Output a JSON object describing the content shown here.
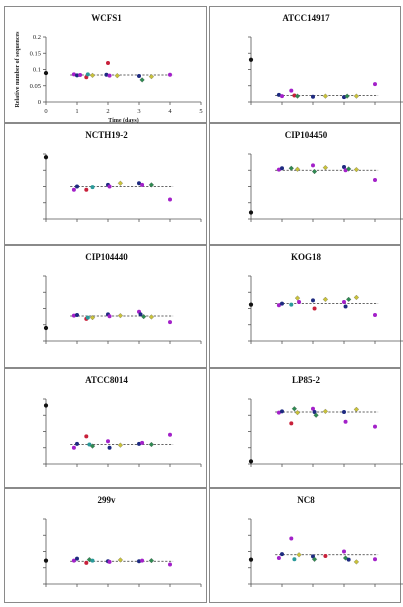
{
  "colors": {
    "black": "#111111",
    "purple": "#a321c9",
    "navy": "#1e2a80",
    "red": "#c8203a",
    "green": "#2f8a52",
    "yellow": "#c9c23a",
    "teal": "#2a9a9a",
    "dashed_line": "#333333"
  },
  "chart_data": [
    {
      "type": "scatter",
      "title": "WCFS1",
      "xlabel": "Time (days)",
      "ylabel": "Relative number of sequences",
      "xlim": [
        0,
        5
      ],
      "ylim": [
        0,
        0.2
      ],
      "x_ticks": [
        "0",
        "1",
        "2",
        "3",
        "4",
        "5"
      ],
      "y_ticks": [
        "0",
        "0.05",
        "0.1",
        "0.15",
        "0.2"
      ],
      "show_tick_labels": true,
      "baseline": 0.083,
      "points": [
        {
          "x": 0,
          "y": 0.089,
          "c": "black"
        },
        {
          "x": 0.9,
          "y": 0.085,
          "c": "purple"
        },
        {
          "x": 1.0,
          "y": 0.082,
          "c": "navy"
        },
        {
          "x": 1.1,
          "y": 0.083,
          "c": "purple"
        },
        {
          "x": 1.3,
          "y": 0.076,
          "c": "red"
        },
        {
          "x": 1.35,
          "y": 0.085,
          "c": "teal"
        },
        {
          "x": 1.5,
          "y": 0.082,
          "c": "yellow"
        },
        {
          "x": 1.95,
          "y": 0.084,
          "c": "navy"
        },
        {
          "x": 2.0,
          "y": 0.12,
          "c": "red"
        },
        {
          "x": 2.05,
          "y": 0.081,
          "c": "purple"
        },
        {
          "x": 2.3,
          "y": 0.081,
          "c": "yellow"
        },
        {
          "x": 3.0,
          "y": 0.08,
          "c": "navy"
        },
        {
          "x": 3.1,
          "y": 0.068,
          "c": "green"
        },
        {
          "x": 3.4,
          "y": 0.078,
          "c": "yellow"
        },
        {
          "x": 4.0,
          "y": 0.084,
          "c": "purple"
        }
      ]
    },
    {
      "type": "scatter",
      "title": "ATCC14917",
      "xlim": [
        0,
        5
      ],
      "ylim": [
        0,
        0.2
      ],
      "show_tick_labels": false,
      "baseline": 0.02,
      "points": [
        {
          "x": 0,
          "y": 0.13,
          "c": "black"
        },
        {
          "x": 0.9,
          "y": 0.022,
          "c": "navy"
        },
        {
          "x": 1.0,
          "y": 0.018,
          "c": "purple"
        },
        {
          "x": 1.3,
          "y": 0.035,
          "c": "purple"
        },
        {
          "x": 1.4,
          "y": 0.02,
          "c": "red"
        },
        {
          "x": 1.5,
          "y": 0.018,
          "c": "green"
        },
        {
          "x": 2.0,
          "y": 0.016,
          "c": "navy"
        },
        {
          "x": 2.4,
          "y": 0.018,
          "c": "yellow"
        },
        {
          "x": 3.0,
          "y": 0.015,
          "c": "navy"
        },
        {
          "x": 3.1,
          "y": 0.018,
          "c": "green"
        },
        {
          "x": 3.4,
          "y": 0.018,
          "c": "yellow"
        },
        {
          "x": 4.0,
          "y": 0.055,
          "c": "purple"
        }
      ]
    },
    {
      "type": "scatter",
      "title": "NCTH19-2",
      "xlim": [
        0,
        5
      ],
      "ylim": [
        0,
        0.2
      ],
      "show_tick_labels": false,
      "baseline": 0.1,
      "points": [
        {
          "x": 0,
          "y": 0.19,
          "c": "black"
        },
        {
          "x": 0.9,
          "y": 0.09,
          "c": "purple"
        },
        {
          "x": 1.0,
          "y": 0.1,
          "c": "navy"
        },
        {
          "x": 1.3,
          "y": 0.09,
          "c": "red"
        },
        {
          "x": 1.5,
          "y": 0.098,
          "c": "teal"
        },
        {
          "x": 2.0,
          "y": 0.105,
          "c": "navy"
        },
        {
          "x": 2.05,
          "y": 0.1,
          "c": "purple"
        },
        {
          "x": 2.4,
          "y": 0.11,
          "c": "yellow"
        },
        {
          "x": 3.0,
          "y": 0.11,
          "c": "navy"
        },
        {
          "x": 3.1,
          "y": 0.105,
          "c": "purple"
        },
        {
          "x": 3.4,
          "y": 0.105,
          "c": "green"
        },
        {
          "x": 4.0,
          "y": 0.06,
          "c": "purple"
        }
      ]
    },
    {
      "type": "scatter",
      "title": "CIP104450",
      "xlim": [
        0,
        5
      ],
      "ylim": [
        0,
        0.2
      ],
      "show_tick_labels": false,
      "baseline": 0.15,
      "points": [
        {
          "x": 0,
          "y": 0.02,
          "c": "black"
        },
        {
          "x": 0.9,
          "y": 0.152,
          "c": "purple"
        },
        {
          "x": 1.0,
          "y": 0.156,
          "c": "navy"
        },
        {
          "x": 1.3,
          "y": 0.156,
          "c": "green"
        },
        {
          "x": 1.5,
          "y": 0.153,
          "c": "yellow"
        },
        {
          "x": 2.0,
          "y": 0.165,
          "c": "purple"
        },
        {
          "x": 2.05,
          "y": 0.146,
          "c": "green"
        },
        {
          "x": 2.4,
          "y": 0.158,
          "c": "yellow"
        },
        {
          "x": 3.0,
          "y": 0.16,
          "c": "navy"
        },
        {
          "x": 3.05,
          "y": 0.15,
          "c": "purple"
        },
        {
          "x": 3.15,
          "y": 0.154,
          "c": "green"
        },
        {
          "x": 3.4,
          "y": 0.152,
          "c": "yellow"
        },
        {
          "x": 4.0,
          "y": 0.12,
          "c": "purple"
        }
      ]
    },
    {
      "type": "scatter",
      "title": "CIP104440",
      "xlim": [
        0,
        5
      ],
      "ylim": [
        0,
        0.2
      ],
      "show_tick_labels": false,
      "baseline": 0.077,
      "points": [
        {
          "x": 0,
          "y": 0.04,
          "c": "black"
        },
        {
          "x": 0.9,
          "y": 0.078,
          "c": "purple"
        },
        {
          "x": 1.0,
          "y": 0.08,
          "c": "navy"
        },
        {
          "x": 1.3,
          "y": 0.068,
          "c": "red"
        },
        {
          "x": 1.35,
          "y": 0.072,
          "c": "teal"
        },
        {
          "x": 1.5,
          "y": 0.072,
          "c": "yellow"
        },
        {
          "x": 2.0,
          "y": 0.082,
          "c": "navy"
        },
        {
          "x": 2.05,
          "y": 0.076,
          "c": "purple"
        },
        {
          "x": 2.4,
          "y": 0.078,
          "c": "yellow"
        },
        {
          "x": 3.0,
          "y": 0.09,
          "c": "purple"
        },
        {
          "x": 3.05,
          "y": 0.082,
          "c": "navy"
        },
        {
          "x": 3.15,
          "y": 0.075,
          "c": "green"
        },
        {
          "x": 3.4,
          "y": 0.074,
          "c": "yellow"
        },
        {
          "x": 4.0,
          "y": 0.058,
          "c": "purple"
        }
      ]
    },
    {
      "type": "scatter",
      "title": "KOG18",
      "xlim": [
        0,
        5
      ],
      "ylim": [
        0,
        0.2
      ],
      "show_tick_labels": false,
      "baseline": 0.115,
      "points": [
        {
          "x": 0,
          "y": 0.112,
          "c": "black"
        },
        {
          "x": 0.9,
          "y": 0.11,
          "c": "purple"
        },
        {
          "x": 1.0,
          "y": 0.115,
          "c": "navy"
        },
        {
          "x": 1.3,
          "y": 0.112,
          "c": "teal"
        },
        {
          "x": 1.5,
          "y": 0.132,
          "c": "yellow"
        },
        {
          "x": 1.55,
          "y": 0.12,
          "c": "purple"
        },
        {
          "x": 2.0,
          "y": 0.125,
          "c": "navy"
        },
        {
          "x": 2.05,
          "y": 0.1,
          "c": "red"
        },
        {
          "x": 2.4,
          "y": 0.128,
          "c": "yellow"
        },
        {
          "x": 3.0,
          "y": 0.12,
          "c": "purple"
        },
        {
          "x": 3.05,
          "y": 0.106,
          "c": "navy"
        },
        {
          "x": 3.15,
          "y": 0.128,
          "c": "green"
        },
        {
          "x": 3.4,
          "y": 0.134,
          "c": "yellow"
        },
        {
          "x": 4.0,
          "y": 0.08,
          "c": "purple"
        }
      ]
    },
    {
      "type": "scatter",
      "title": "ATCC8014",
      "xlim": [
        0,
        5
      ],
      "ylim": [
        0,
        0.2
      ],
      "show_tick_labels": false,
      "baseline": 0.06,
      "points": [
        {
          "x": 0,
          "y": 0.18,
          "c": "black"
        },
        {
          "x": 0.9,
          "y": 0.05,
          "c": "purple"
        },
        {
          "x": 1.0,
          "y": 0.062,
          "c": "navy"
        },
        {
          "x": 1.3,
          "y": 0.085,
          "c": "red"
        },
        {
          "x": 1.4,
          "y": 0.06,
          "c": "teal"
        },
        {
          "x": 1.5,
          "y": 0.055,
          "c": "green"
        },
        {
          "x": 2.0,
          "y": 0.07,
          "c": "purple"
        },
        {
          "x": 2.05,
          "y": 0.05,
          "c": "navy"
        },
        {
          "x": 2.4,
          "y": 0.058,
          "c": "yellow"
        },
        {
          "x": 3.0,
          "y": 0.062,
          "c": "navy"
        },
        {
          "x": 3.1,
          "y": 0.065,
          "c": "purple"
        },
        {
          "x": 3.4,
          "y": 0.06,
          "c": "green"
        },
        {
          "x": 4.0,
          "y": 0.09,
          "c": "purple"
        }
      ]
    },
    {
      "type": "scatter",
      "title": "LP85-2",
      "xlim": [
        0,
        5
      ],
      "ylim": [
        0,
        0.2
      ],
      "show_tick_labels": false,
      "baseline": 0.16,
      "points": [
        {
          "x": 0,
          "y": 0.008,
          "c": "black"
        },
        {
          "x": 0.9,
          "y": 0.158,
          "c": "purple"
        },
        {
          "x": 1.0,
          "y": 0.162,
          "c": "navy"
        },
        {
          "x": 1.3,
          "y": 0.125,
          "c": "red"
        },
        {
          "x": 1.4,
          "y": 0.17,
          "c": "green"
        },
        {
          "x": 1.5,
          "y": 0.158,
          "c": "yellow"
        },
        {
          "x": 2.0,
          "y": 0.17,
          "c": "purple"
        },
        {
          "x": 2.05,
          "y": 0.16,
          "c": "navy"
        },
        {
          "x": 2.1,
          "y": 0.15,
          "c": "green"
        },
        {
          "x": 2.4,
          "y": 0.162,
          "c": "yellow"
        },
        {
          "x": 3.0,
          "y": 0.16,
          "c": "navy"
        },
        {
          "x": 3.05,
          "y": 0.13,
          "c": "purple"
        },
        {
          "x": 3.4,
          "y": 0.168,
          "c": "yellow"
        },
        {
          "x": 4.0,
          "y": 0.115,
          "c": "purple"
        }
      ]
    },
    {
      "type": "scatter",
      "title": "299v",
      "xlim": [
        0,
        5
      ],
      "ylim": [
        0,
        0.2
      ],
      "show_tick_labels": false,
      "baseline": 0.07,
      "points": [
        {
          "x": 0,
          "y": 0.072,
          "c": "black"
        },
        {
          "x": 0.9,
          "y": 0.072,
          "c": "purple"
        },
        {
          "x": 1.0,
          "y": 0.078,
          "c": "navy"
        },
        {
          "x": 1.3,
          "y": 0.065,
          "c": "red"
        },
        {
          "x": 1.4,
          "y": 0.075,
          "c": "green"
        },
        {
          "x": 1.5,
          "y": 0.072,
          "c": "teal"
        },
        {
          "x": 2.0,
          "y": 0.07,
          "c": "navy"
        },
        {
          "x": 2.05,
          "y": 0.068,
          "c": "purple"
        },
        {
          "x": 2.4,
          "y": 0.074,
          "c": "yellow"
        },
        {
          "x": 3.0,
          "y": 0.07,
          "c": "navy"
        },
        {
          "x": 3.1,
          "y": 0.072,
          "c": "purple"
        },
        {
          "x": 3.4,
          "y": 0.072,
          "c": "green"
        },
        {
          "x": 4.0,
          "y": 0.06,
          "c": "purple"
        }
      ]
    },
    {
      "type": "scatter",
      "title": "NC8",
      "xlim": [
        0,
        5
      ],
      "ylim": [
        0,
        0.2
      ],
      "show_tick_labels": false,
      "baseline": 0.09,
      "points": [
        {
          "x": 0,
          "y": 0.075,
          "c": "black"
        },
        {
          "x": 0.9,
          "y": 0.08,
          "c": "purple"
        },
        {
          "x": 1.0,
          "y": 0.092,
          "c": "navy"
        },
        {
          "x": 1.3,
          "y": 0.14,
          "c": "purple"
        },
        {
          "x": 1.4,
          "y": 0.076,
          "c": "teal"
        },
        {
          "x": 1.55,
          "y": 0.09,
          "c": "yellow"
        },
        {
          "x": 2.0,
          "y": 0.085,
          "c": "navy"
        },
        {
          "x": 2.05,
          "y": 0.076,
          "c": "green"
        },
        {
          "x": 2.4,
          "y": 0.086,
          "c": "red"
        },
        {
          "x": 3.0,
          "y": 0.1,
          "c": "purple"
        },
        {
          "x": 3.05,
          "y": 0.08,
          "c": "green"
        },
        {
          "x": 3.15,
          "y": 0.075,
          "c": "navy"
        },
        {
          "x": 3.4,
          "y": 0.068,
          "c": "yellow"
        },
        {
          "x": 4.0,
          "y": 0.076,
          "c": "purple"
        }
      ]
    }
  ]
}
